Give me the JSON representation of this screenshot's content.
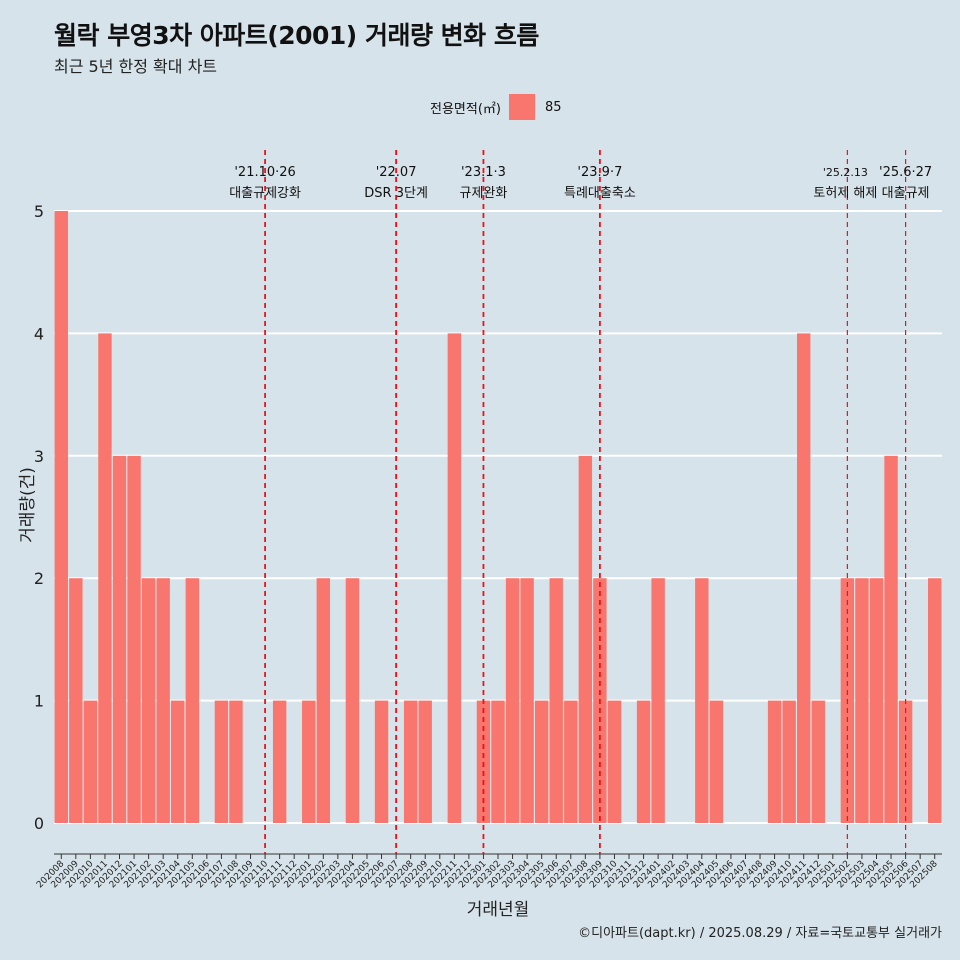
{
  "title": "월락 부영3차 아파트(2001) 거래량 변화 흐름",
  "subtitle": "최근 5년 한정 확대 차트",
  "caption": "©디아파트(dapt.kr) / 2025.08.29 / 자료=국토교통부 실거래가",
  "legend": {
    "title": "전용면적(㎡)",
    "entries": [
      "85"
    ],
    "color": "#f8766d"
  },
  "colors": {
    "background": "#d7e3ea",
    "bar": "#f8766d",
    "grid": "#ffffff",
    "event_line": "#e8141a"
  },
  "chart_data": {
    "type": "bar",
    "xlabel": "거래년월",
    "ylabel": "거래량(건)",
    "ylim": [
      0,
      5
    ],
    "yticks": [
      0,
      1,
      2,
      3,
      4,
      5
    ],
    "grid": true,
    "legend_position": "top",
    "categories": [
      "202008",
      "202009",
      "202010",
      "202011",
      "202012",
      "202101",
      "202102",
      "202103",
      "202104",
      "202105",
      "202106",
      "202107",
      "202108",
      "202109",
      "202110",
      "202111",
      "202112",
      "202201",
      "202202",
      "202203",
      "202204",
      "202205",
      "202206",
      "202207",
      "202208",
      "202209",
      "202210",
      "202211",
      "202212",
      "202301",
      "202302",
      "202303",
      "202304",
      "202305",
      "202306",
      "202307",
      "202308",
      "202309",
      "202310",
      "202311",
      "202312",
      "202401",
      "202402",
      "202403",
      "202404",
      "202405",
      "202406",
      "202407",
      "202408",
      "202409",
      "202410",
      "202411",
      "202412",
      "202501",
      "202502",
      "202503",
      "202504",
      "202505",
      "202506",
      "202507",
      "202508"
    ],
    "series": [
      {
        "name": "85",
        "values": [
          5,
          2,
          1,
          4,
          3,
          3,
          2,
          2,
          1,
          2,
          0,
          1,
          1,
          0,
          0,
          1,
          0,
          1,
          2,
          0,
          2,
          0,
          1,
          0,
          1,
          1,
          0,
          4,
          0,
          1,
          1,
          2,
          2,
          1,
          2,
          1,
          3,
          2,
          1,
          0,
          1,
          2,
          0,
          0,
          2,
          1,
          0,
          0,
          0,
          1,
          1,
          4,
          1,
          0,
          2,
          2,
          2,
          3,
          1,
          0,
          2
        ]
      }
    ],
    "annotations": [
      {
        "position": "202110",
        "date": "'21.10·26",
        "label": "대출규제강화"
      },
      {
        "position": "202207",
        "date": "'22.07",
        "label": "DSR 3단계"
      },
      {
        "position": "202301",
        "date": "'23.1·3",
        "label": "규제완화"
      },
      {
        "position": "202309",
        "date": "'23.9·7",
        "label": "특례대출축소"
      },
      {
        "position": "202502",
        "date": "'25.2.13",
        "label": "토허제 해제"
      },
      {
        "position": "202506",
        "date": "'25.6·27",
        "label": "대출규제"
      }
    ]
  }
}
